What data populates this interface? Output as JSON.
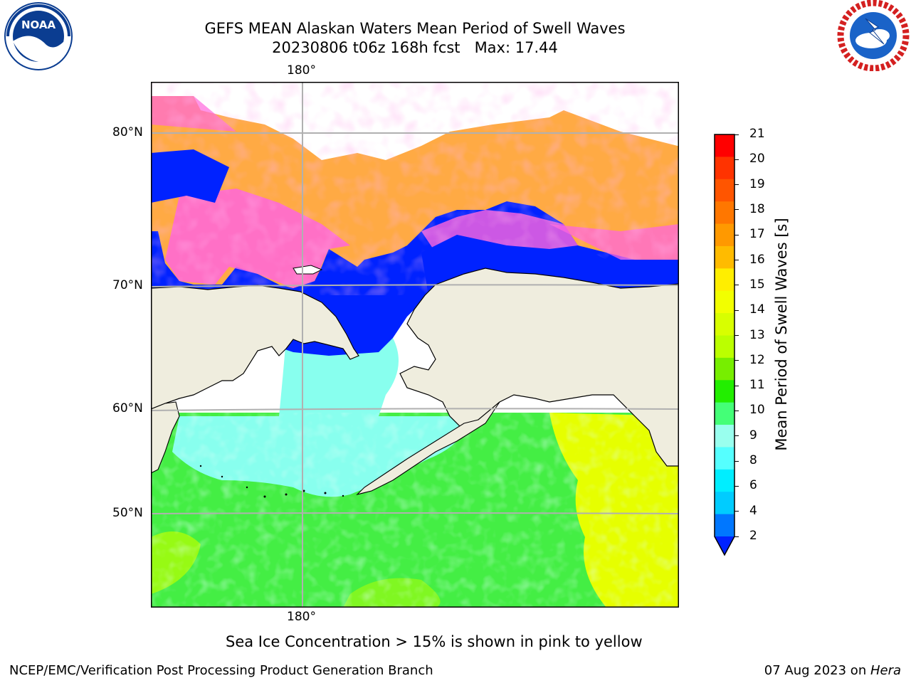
{
  "title_line1": "GEFS MEAN Alaskan Waters Mean Period of Swell Waves",
  "title_line2": "20230806 t06z 168h fcst   Max: 17.44",
  "lon_label_top": "180°",
  "lon_label_bottom": "180°",
  "lat_labels": [
    "80°N",
    "70°N",
    "60°N",
    "50°N"
  ],
  "colorbar": {
    "label": "Mean Period of Swell Waves [s]",
    "ticks": [
      "21",
      "20",
      "19",
      "18",
      "17",
      "16",
      "15",
      "14",
      "13",
      "12",
      "11",
      "10",
      "9",
      "8",
      "6",
      "4",
      "2"
    ],
    "colors_top_to_bottom": [
      "#ff0000",
      "#ff3300",
      "#ff5500",
      "#ff7700",
      "#ff9900",
      "#ffbb00",
      "#ffee00",
      "#f2ff00",
      "#d8ff00",
      "#bbff00",
      "#77ee00",
      "#22ee00",
      "#44ff77",
      "#99ffee",
      "#55ffff",
      "#00eeff",
      "#00ccff",
      "#0077ff"
    ],
    "extend_color": "#0022ff"
  },
  "map_colors": {
    "land": "#efedde",
    "ice_low": "#0022ff",
    "ice_pink": "#ff66dd",
    "ice_orange": "#ffaa44",
    "ocean_cyan": "#88ffee",
    "ocean_green": "#44ee44",
    "ocean_yellow": "#e6ff00",
    "grid": "#b0b0b0"
  },
  "note": "Sea Ice Concentration > 15% is shown in pink to yellow",
  "footer_left": "NCEP/EMC/Verification Post Processing Product Generation Branch",
  "footer_right_date": "07 Aug 2023 on ",
  "footer_right_host": "Hera"
}
